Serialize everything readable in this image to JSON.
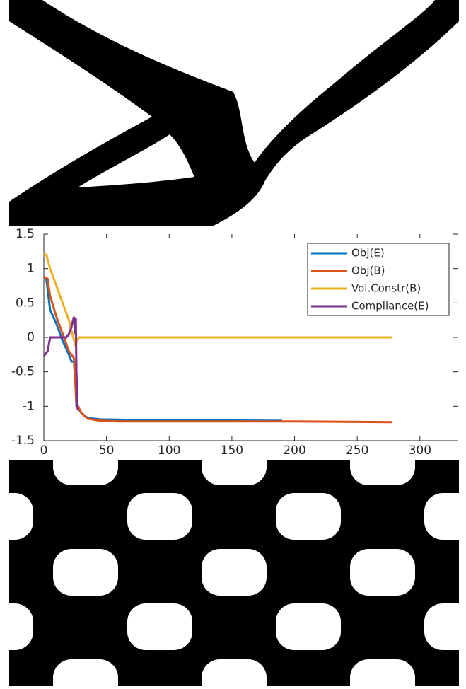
{
  "chart_data": {
    "type": "line",
    "xlim": [
      0,
      330
    ],
    "ylim": [
      -1.5,
      1.5
    ],
    "xticks": [
      0,
      50,
      100,
      150,
      200,
      250,
      300
    ],
    "yticks": [
      -1.5,
      -1,
      -0.5,
      0,
      0.5,
      1,
      1.5
    ],
    "legend": "upper right",
    "series": [
      {
        "name": "Obj(E)",
        "color": "#0072bd",
        "x": [
          2,
          5,
          10,
          15,
          20,
          22,
          24,
          25,
          26,
          30,
          35,
          45,
          75,
          190
        ],
        "values": [
          0.85,
          0.4,
          0.2,
          -0.05,
          -0.25,
          -0.35,
          -0.35,
          -0.6,
          -1.0,
          -1.1,
          -1.17,
          -1.19,
          -1.2,
          -1.21
        ]
      },
      {
        "name": "Obj(B)",
        "color": "#d95319",
        "x": [
          0,
          3,
          5,
          10,
          15,
          20,
          24,
          25,
          26,
          30,
          35,
          45,
          60,
          100,
          200,
          278
        ],
        "values": [
          0.88,
          0.85,
          0.6,
          0.3,
          0.05,
          -0.2,
          -0.3,
          -0.6,
          -0.95,
          -1.1,
          -1.18,
          -1.21,
          -1.22,
          -1.22,
          -1.22,
          -1.23
        ]
      },
      {
        "name": "Vol.Constr(B)",
        "color": "#edb120",
        "x": [
          0,
          2,
          5,
          10,
          15,
          20,
          22,
          25,
          28,
          30,
          50,
          100,
          200,
          278
        ],
        "values": [
          1.22,
          1.2,
          1.0,
          0.75,
          0.5,
          0.25,
          0.1,
          -0.1,
          0,
          0,
          0,
          0,
          0,
          0
        ]
      },
      {
        "name": "Compliance(E)",
        "color": "#7e2f8e",
        "x": [
          0,
          3,
          5,
          10,
          18,
          20,
          22,
          24,
          25,
          25.5,
          26,
          27
        ],
        "values": [
          -0.27,
          -0.2,
          0,
          0,
          0,
          0.05,
          0.15,
          0.3,
          0.05,
          0.28,
          -0.5,
          -1.05
        ]
      }
    ]
  }
}
